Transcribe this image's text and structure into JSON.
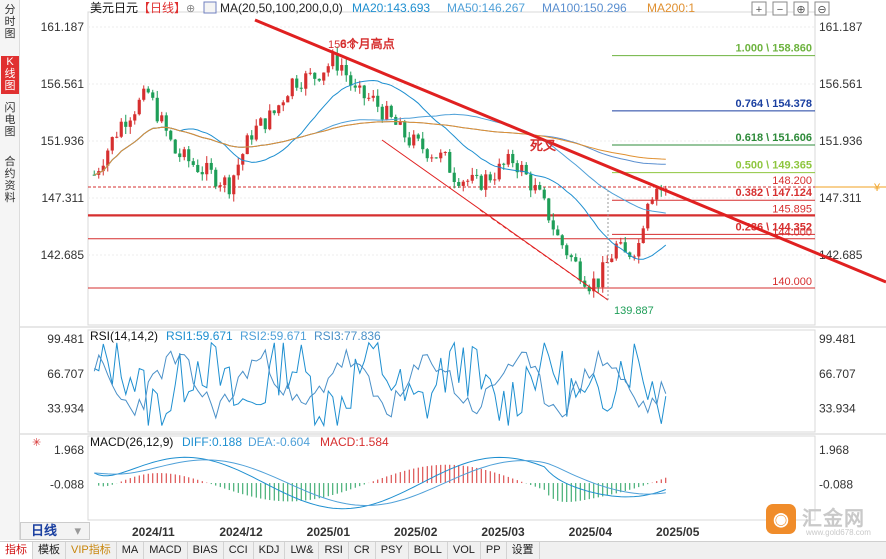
{
  "left_tabs": [
    "分时图",
    "K线图",
    "闪电图",
    "合约资料"
  ],
  "bottom_tabs": [
    "指标",
    "模板",
    "VIP指标",
    "MA",
    "MACD",
    "BIAS",
    "CCI",
    "KDJ",
    "LW&",
    "RSI",
    "CR",
    "PSY",
    "BOLL",
    "VOL",
    "PP",
    "设置"
  ],
  "period_label": "日线",
  "period_arrow": "▾",
  "toolbar_icons": [
    "add-icon",
    "minus-icon",
    "zoom-in-icon",
    "zoom-out-icon"
  ],
  "chart_data": [
    {
      "type": "candlestick",
      "symbol": "美元日元",
      "period": "【日线】",
      "ma_label": "MA(20,50,100,200,0,0)",
      "ma_values": [
        {
          "name": "MA20",
          "value": "143.693",
          "color": "#1e8fd0"
        },
        {
          "name": "MA50",
          "value": "146.267",
          "color": "#4fa0d8"
        },
        {
          "name": "MA100",
          "value": "150.296",
          "color": "#5a8fd0"
        },
        {
          "name": "MA200",
          "value": "1",
          "color": "#e09030"
        }
      ],
      "x_tick_labels": [
        "2024/11",
        "2024/12",
        "2025/01",
        "2025/02",
        "2025/03",
        "2025/04",
        "2025/05"
      ],
      "y_ticks": [
        161.187,
        156.561,
        151.936,
        147.311,
        142.685
      ],
      "y_tick_labels": [
        "161.187",
        "156.561",
        "151.936",
        "147.311",
        "142.685"
      ],
      "ylim": [
        137.0,
        162.4
      ],
      "up_color": "#d62f2f",
      "down_color": "#1e9e58",
      "candles_bars": 128,
      "candles_path": [
        [
          0,
          149.2
        ],
        [
          6,
          153.4
        ],
        [
          12,
          155.8
        ],
        [
          18,
          151.0
        ],
        [
          24,
          149.6
        ],
        [
          30,
          148.4
        ],
        [
          35,
          152.6
        ],
        [
          40,
          154.2
        ],
        [
          44,
          156.8
        ],
        [
          49,
          157.2
        ],
        [
          53,
          158.4
        ],
        [
          55,
          158.1
        ],
        [
          58,
          155.8
        ],
        [
          62,
          155.2
        ],
        [
          66,
          153.6
        ],
        [
          70,
          152.0
        ],
        [
          74,
          151.2
        ],
        [
          78,
          150.4
        ],
        [
          80,
          149.2
        ],
        [
          85,
          148.4
        ],
        [
          88,
          149.1
        ],
        [
          93,
          150.4
        ],
        [
          95,
          149.6
        ],
        [
          99,
          147.4
        ],
        [
          101,
          145.9
        ],
        [
          103,
          144.1
        ],
        [
          106,
          142.4
        ],
        [
          110,
          140.4
        ],
        [
          112,
          140.6
        ],
        [
          116,
          143.4
        ],
        [
          118,
          142.6
        ],
        [
          121,
          143.6
        ],
        [
          123,
          147.4
        ],
        [
          125,
          148.2
        ],
        [
          127,
          147.8
        ]
      ],
      "fib_levels": [
        {
          "label": "1.000 \\ 158.860",
          "value": 158.86,
          "color": "#6db33f"
        },
        {
          "label": "0.764 \\ 154.378",
          "value": 154.378,
          "color": "#1a3fa0"
        },
        {
          "label": "0.618 \\ 151.606",
          "value": 151.606,
          "color": "#2e8b3a"
        },
        {
          "label": "0.500 \\ 149.365",
          "value": 149.365,
          "color": "#8ec63f"
        },
        {
          "label": "0.382 \\ 147.124",
          "value": 147.124,
          "color": "#d62f2f"
        },
        {
          "label": "0.236 \\ 144.352",
          "value": 144.352,
          "color": "#d62f2f"
        }
      ],
      "price_levels": [
        {
          "label": "148.200",
          "value": 148.2,
          "color": "#d62f2f"
        },
        {
          "label": "145.895",
          "value": 145.895,
          "color": "#d62f2f"
        },
        {
          "label": "144.000",
          "value": 144.0,
          "color": "#d62f2f"
        },
        {
          "label": "140.000",
          "value": 140.0,
          "color": "#d62f2f"
        }
      ],
      "current_price_marker": "148.2",
      "annotations": [
        {
          "text": "158.8",
          "kind": "high"
        },
        {
          "text": "6个月高点",
          "kind": "note"
        },
        {
          "text": "死叉",
          "kind": "note"
        },
        {
          "text": "139.887",
          "kind": "low"
        }
      ]
    },
    {
      "type": "line",
      "title": "RSI(14,14,2)",
      "series": [
        {
          "name": "RSI1",
          "value": "59.671",
          "color": "#1e8fd0"
        },
        {
          "name": "RSI2",
          "value": "59.671",
          "color": "#4fa0d8"
        },
        {
          "name": "RSI3",
          "value": "77.836",
          "color": "#4a90c8"
        }
      ],
      "y_tick_labels": [
        "99.481",
        "66.707",
        "33.934"
      ],
      "y_ticks": [
        99.481,
        66.707,
        33.934
      ],
      "ylim": [
        12,
        108
      ]
    },
    {
      "type": "bar",
      "title": "MACD(26,12,9)",
      "series": [
        {
          "name": "DIFF",
          "value": "0.188",
          "color": "#1e8fd0"
        },
        {
          "name": "DEA",
          "value": "-0.604",
          "color": "#4fa0d8"
        },
        {
          "name": "MACD",
          "value": "1.584",
          "color": "#d62f2f"
        }
      ],
      "y_tick_labels": [
        "1.968",
        "-0.088"
      ],
      "y_ticks": [
        1.968,
        -0.088
      ],
      "ylim": [
        -2.2,
        2.8
      ]
    }
  ]
}
